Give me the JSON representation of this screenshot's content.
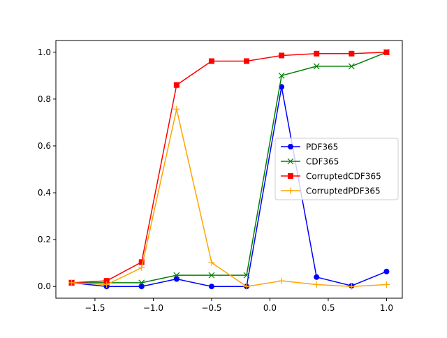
{
  "chart_data": {
    "type": "line",
    "title": "",
    "xlabel": "",
    "ylabel": "",
    "xlim": [
      -1.835,
      1.135
    ],
    "ylim": [
      -0.05,
      1.05
    ],
    "x_ticks": [
      -1.5,
      -1.0,
      -0.5,
      0.0,
      0.5,
      1.0
    ],
    "x_tick_labels": [
      "−1.5",
      "−1.0",
      "−0.5",
      "0.0",
      "0.5",
      "1.0"
    ],
    "y_ticks": [
      0.0,
      0.2,
      0.4,
      0.6,
      0.8,
      1.0
    ],
    "y_tick_labels": [
      "0.0",
      "0.2",
      "0.4",
      "0.6",
      "0.8",
      "1.0"
    ],
    "grid": false,
    "legend_position": "center-right",
    "x": [
      -1.7,
      -1.4,
      -1.1,
      -0.8,
      -0.5,
      -0.2,
      0.1,
      0.4,
      0.7,
      1.0
    ],
    "series": [
      {
        "name": "PDF365",
        "color": "#0000ff",
        "marker": "circle",
        "values": [
          0.016,
          0.0,
          0.0,
          0.032,
          0.0,
          0.0,
          0.852,
          0.04,
          0.003,
          0.064
        ]
      },
      {
        "name": "CDF365",
        "color": "#008000",
        "marker": "x",
        "values": [
          0.016,
          0.016,
          0.016,
          0.048,
          0.048,
          0.048,
          0.9,
          0.94,
          0.94,
          1.0
        ]
      },
      {
        "name": "CorruptedCDF365",
        "color": "#ff0000",
        "marker": "square",
        "values": [
          0.016,
          0.024,
          0.104,
          0.86,
          0.962,
          0.962,
          0.986,
          0.994,
          0.994,
          1.0
        ]
      },
      {
        "name": "CorruptedPDF365",
        "color": "#ffa500",
        "marker": "plus",
        "values": [
          0.016,
          0.008,
          0.08,
          0.757,
          0.102,
          0.0,
          0.024,
          0.008,
          0.0,
          0.008
        ]
      }
    ]
  }
}
